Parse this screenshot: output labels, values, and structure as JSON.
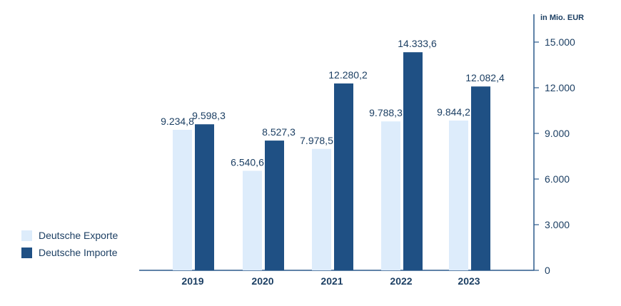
{
  "colors": {
    "export": "#ddecfb",
    "import": "#1f5084",
    "text": "#1c3f63",
    "axis": "#2b5a8c"
  },
  "legend": {
    "export_label": "Deutsche Exporte",
    "import_label": "Deutsche Importe"
  },
  "chart_data": {
    "type": "bar",
    "title": "",
    "xlabel": "",
    "ylabel": "in Mio. EUR",
    "ylim": [
      0,
      15000
    ],
    "yticks": [
      "0",
      "3.000",
      "6.000",
      "9.000",
      "12.000",
      "15.000"
    ],
    "y_axis_side": "right",
    "legend_position": "bottom-left",
    "grid": false,
    "categories": [
      "2019",
      "2020",
      "2021",
      "2022",
      "2023"
    ],
    "series": [
      {
        "name": "Deutsche Exporte",
        "values": [
          9234.8,
          6540.6,
          7978.5,
          9788.3,
          9844.2
        ],
        "labels": [
          "9.234,8",
          "6.540,6",
          "7.978,5",
          "9.788,3",
          "9.844,2"
        ]
      },
      {
        "name": "Deutsche Importe",
        "values": [
          9598.3,
          8527.3,
          12280.2,
          14333.6,
          12082.4
        ],
        "labels": [
          "9.598,3",
          "8.527,3",
          "12.280,2",
          "14.333,6",
          "12.082,4"
        ]
      }
    ]
  }
}
